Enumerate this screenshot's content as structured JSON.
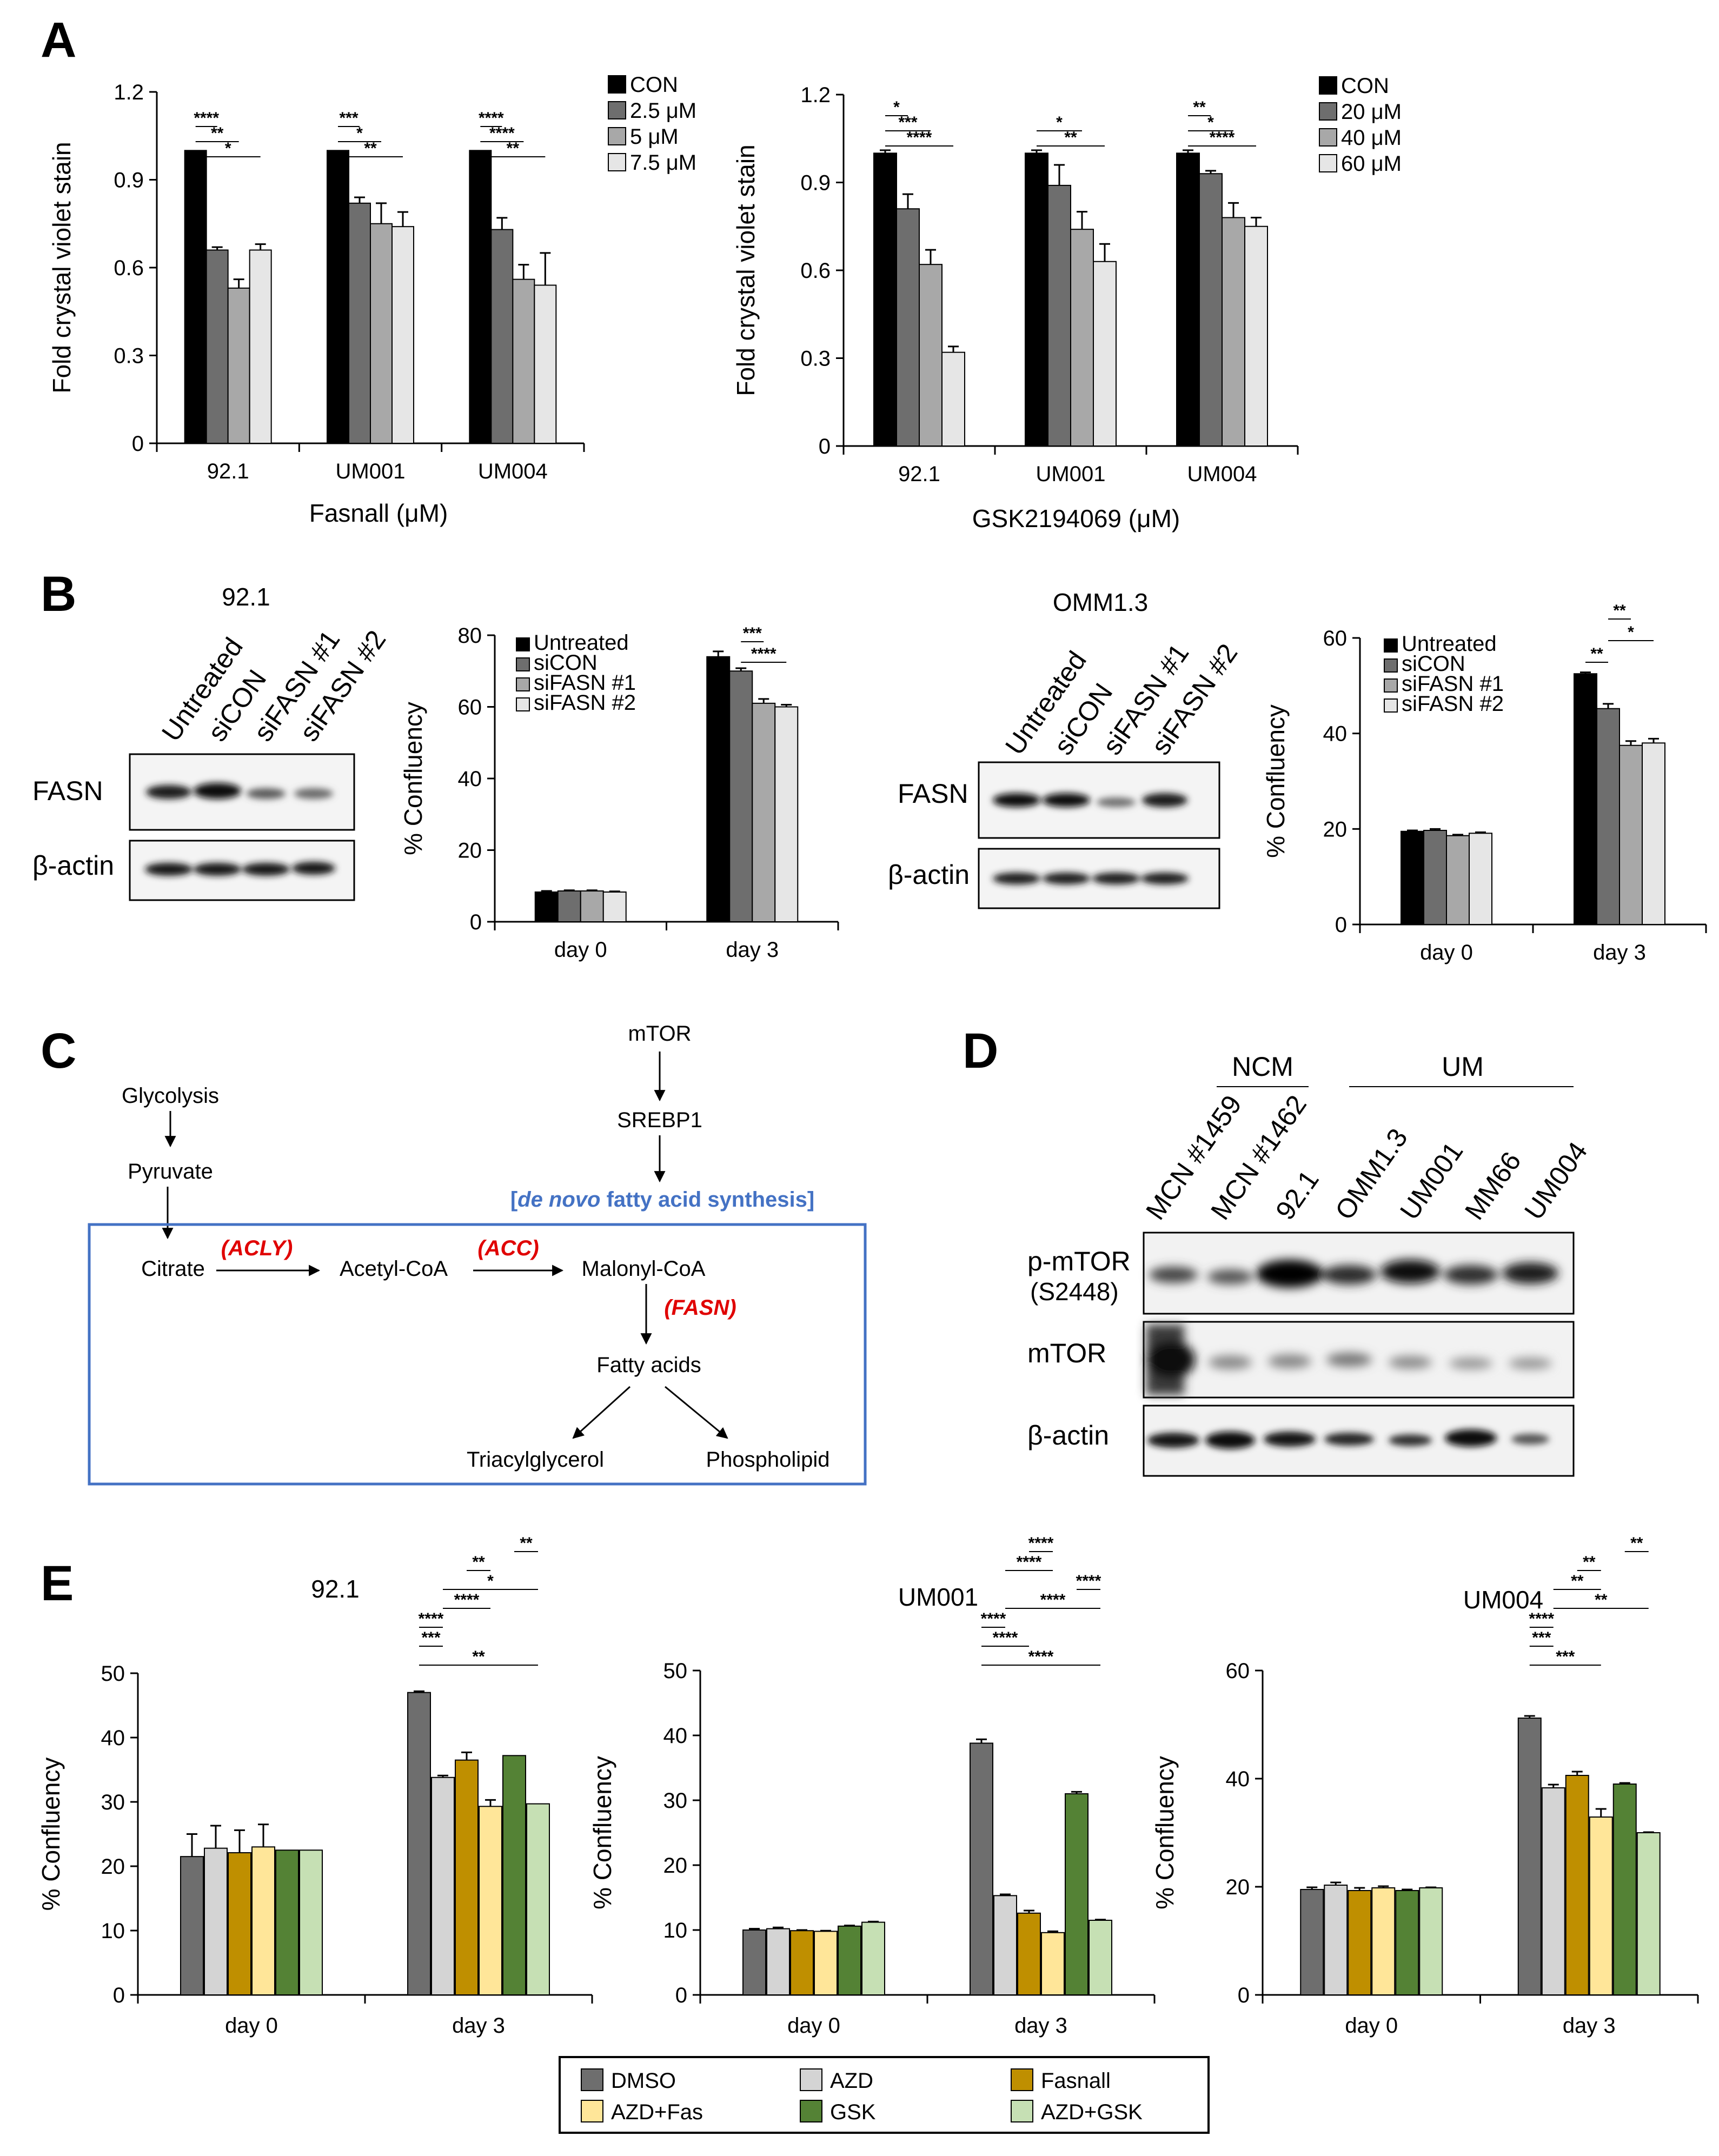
{
  "panel_labels": {
    "A": "A",
    "B": "B",
    "C": "C",
    "D": "D",
    "E": "E"
  },
  "colors": {
    "a_con": "#000000",
    "a_l1": "#6e6e6e",
    "a_l2": "#a8a8a8",
    "a_l3": "#e6e6e6",
    "dmso": "#6e6e6e",
    "azd": "#d4d4d4",
    "fasnall": "#bf8f00",
    "azdfas": "#ffe699",
    "gsk": "#548235",
    "azdgsk": "#c6e0b4",
    "pathway_box": "#4472c4",
    "enzyme_red": "#e00000",
    "title_blue": "#4472c4"
  },
  "chart_data": [
    {
      "id": "A1",
      "type": "bar",
      "ylabel": "Fold crystal violet stain",
      "xlabel": "Fasnall (μM)",
      "yticks": [
        "0",
        "0.3",
        "0.6",
        "0.9",
        "1.2"
      ],
      "ylim": [
        0,
        1.2
      ],
      "categories": [
        "92.1",
        "UM001",
        "UM004"
      ],
      "series": [
        {
          "name": "CON",
          "values": [
            1.0,
            1.0,
            1.0
          ],
          "errors": [
            0,
            0,
            0
          ]
        },
        {
          "name": "2.5 μM",
          "values": [
            0.66,
            0.82,
            0.73
          ],
          "errors": [
            0.01,
            0.02,
            0.04
          ]
        },
        {
          "name": "5 μM",
          "values": [
            0.53,
            0.75,
            0.56
          ],
          "errors": [
            0.03,
            0.07,
            0.05
          ]
        },
        {
          "name": "7.5 μM",
          "values": [
            0.66,
            0.74,
            0.54
          ],
          "errors": [
            0.02,
            0.05,
            0.11
          ]
        }
      ],
      "significance": [
        {
          "cat": 0,
          "from": 0,
          "to": 3,
          "label": "*"
        },
        {
          "cat": 0,
          "from": 0,
          "to": 2,
          "label": "**"
        },
        {
          "cat": 0,
          "from": 0,
          "to": 1,
          "label": "****"
        },
        {
          "cat": 1,
          "from": 0,
          "to": 3,
          "label": "**"
        },
        {
          "cat": 1,
          "from": 0,
          "to": 2,
          "label": "*"
        },
        {
          "cat": 1,
          "from": 0,
          "to": 1,
          "label": "***"
        },
        {
          "cat": 2,
          "from": 0,
          "to": 3,
          "label": "**"
        },
        {
          "cat": 2,
          "from": 0,
          "to": 2,
          "label": "****"
        },
        {
          "cat": 2,
          "from": 0,
          "to": 1,
          "label": "****"
        }
      ]
    },
    {
      "id": "A2",
      "type": "bar",
      "ylabel": "Fold crystal violet stain",
      "xlabel": "GSK2194069 (μM)",
      "yticks": [
        "0",
        "0.3",
        "0.6",
        "0.9",
        "1.2"
      ],
      "ylim": [
        0,
        1.2
      ],
      "categories": [
        "92.1",
        "UM001",
        "UM004"
      ],
      "series": [
        {
          "name": "CON",
          "values": [
            1.0,
            1.0,
            1.0
          ],
          "errors": [
            0.01,
            0.01,
            0.01
          ]
        },
        {
          "name": "20 μM",
          "values": [
            0.81,
            0.89,
            0.93
          ],
          "errors": [
            0.05,
            0.07,
            0.01
          ]
        },
        {
          "name": "40 μM",
          "values": [
            0.62,
            0.74,
            0.78
          ],
          "errors": [
            0.05,
            0.06,
            0.05
          ]
        },
        {
          "name": "60 μM",
          "values": [
            0.32,
            0.63,
            0.75
          ],
          "errors": [
            0.02,
            0.06,
            0.03
          ]
        }
      ],
      "significance": [
        {
          "cat": 0,
          "from": 0,
          "to": 3,
          "label": "****"
        },
        {
          "cat": 0,
          "from": 0,
          "to": 2,
          "label": "***"
        },
        {
          "cat": 0,
          "from": 0,
          "to": 1,
          "label": "*"
        },
        {
          "cat": 1,
          "from": 0,
          "to": 3,
          "label": "**"
        },
        {
          "cat": 1,
          "from": 0,
          "to": 2,
          "label": "*"
        },
        {
          "cat": 2,
          "from": 0,
          "to": 3,
          "label": "****"
        },
        {
          "cat": 2,
          "from": 0,
          "to": 2,
          "label": "*"
        },
        {
          "cat": 2,
          "from": 0,
          "to": 1,
          "label": "**"
        }
      ]
    },
    {
      "id": "B1",
      "type": "bar",
      "ylabel": "% Confluency",
      "xlabel": "",
      "yticks": [
        "0",
        "20",
        "40",
        "60",
        "80"
      ],
      "ylim": [
        0,
        80
      ],
      "categories": [
        "day 0",
        "day 3"
      ],
      "series": [
        {
          "name": "Untreated",
          "values": [
            8.3,
            74
          ],
          "errors": [
            0.3,
            1.5
          ]
        },
        {
          "name": "siCON",
          "values": [
            8.6,
            70
          ],
          "errors": [
            0.2,
            0.8
          ]
        },
        {
          "name": "siFASN #1",
          "values": [
            8.6,
            61
          ],
          "errors": [
            0.2,
            1.2
          ]
        },
        {
          "name": "siFASN #2",
          "values": [
            8.3,
            60
          ],
          "errors": [
            0.2,
            0.6
          ]
        }
      ],
      "significance": [
        {
          "cat": 1,
          "from": 1,
          "to": 3,
          "label": "****"
        },
        {
          "cat": 1,
          "from": 1,
          "to": 2,
          "label": "***"
        }
      ]
    },
    {
      "id": "B2",
      "type": "bar",
      "ylabel": "% Confluency",
      "xlabel": "",
      "yticks": [
        "0",
        "20",
        "40",
        "60"
      ],
      "ylim": [
        0,
        60
      ],
      "categories": [
        "day 0",
        "day 3"
      ],
      "series": [
        {
          "name": "Untreated",
          "values": [
            19.5,
            52.5
          ],
          "errors": [
            0.2,
            0.3
          ]
        },
        {
          "name": "siCON",
          "values": [
            19.7,
            45.2
          ],
          "errors": [
            0.3,
            1.0
          ]
        },
        {
          "name": "siFASN #1",
          "values": [
            18.6,
            37.5
          ],
          "errors": [
            0.2,
            0.9
          ]
        },
        {
          "name": "siFASN #2",
          "values": [
            19.1,
            38.0
          ],
          "errors": [
            0.2,
            0.9
          ]
        }
      ],
      "significance": [
        {
          "cat": 1,
          "from": 0,
          "to": 1,
          "label": "**"
        },
        {
          "cat": 1,
          "from": 1,
          "to": 3,
          "label": "*"
        },
        {
          "cat": 1,
          "from": 1,
          "to": 2,
          "label": "**"
        }
      ]
    },
    {
      "id": "E1",
      "type": "bar",
      "title": "92.1",
      "ylabel": "% Confluency",
      "xlabel": "",
      "yticks": [
        "0",
        "10",
        "20",
        "30",
        "40",
        "50"
      ],
      "ylim": [
        0,
        50
      ],
      "categories": [
        "day 0",
        "day 3"
      ],
      "series": [
        {
          "name": "DMSO",
          "values": [
            21.5,
            47.0
          ],
          "errors": [
            3.5,
            0.2
          ]
        },
        {
          "name": "AZD",
          "values": [
            22.8,
            33.8
          ],
          "errors": [
            3.5,
            0.3
          ]
        },
        {
          "name": "Fasnall",
          "values": [
            22.1,
            36.5
          ],
          "errors": [
            3.5,
            1.2
          ]
        },
        {
          "name": "AZD+Fas",
          "values": [
            23.0,
            29.3
          ],
          "errors": [
            3.5,
            1.0
          ]
        },
        {
          "name": "GSK",
          "values": [
            22.5,
            37.2
          ],
          "errors": [
            0,
            0
          ]
        },
        {
          "name": "AZD+GSK",
          "values": [
            22.5,
            29.7
          ],
          "errors": [
            0,
            0
          ]
        }
      ],
      "significance": [
        {
          "cat": 1,
          "from": 0,
          "to": 5,
          "label": "**"
        },
        {
          "cat": 1,
          "from": 0,
          "to": 1,
          "label": "***"
        },
        {
          "cat": 1,
          "from": 0,
          "to": 1,
          "label": "****"
        },
        {
          "cat": 1,
          "from": 1,
          "to": 3,
          "label": "****"
        },
        {
          "cat": 1,
          "from": 1,
          "to": 5,
          "label": "*"
        },
        {
          "cat": 1,
          "from": 2,
          "to": 3,
          "label": "**"
        },
        {
          "cat": 1,
          "from": 4,
          "to": 5,
          "label": "**"
        }
      ]
    },
    {
      "id": "E2",
      "type": "bar",
      "title": "UM001",
      "ylabel": "% Confluency",
      "xlabel": "",
      "yticks": [
        "0",
        "10",
        "20",
        "30",
        "40",
        "50"
      ],
      "ylim": [
        0,
        50
      ],
      "categories": [
        "day 0",
        "day 3"
      ],
      "series": [
        {
          "name": "DMSO",
          "values": [
            10.0,
            38.8
          ],
          "errors": [
            0.2,
            0.6
          ]
        },
        {
          "name": "AZD",
          "values": [
            10.2,
            15.3
          ],
          "errors": [
            0.2,
            0.2
          ]
        },
        {
          "name": "Fasnall",
          "values": [
            9.9,
            12.6
          ],
          "errors": [
            0.1,
            0.4
          ]
        },
        {
          "name": "AZD+Fas",
          "values": [
            9.8,
            9.6
          ],
          "errors": [
            0.1,
            0.2
          ]
        },
        {
          "name": "GSK",
          "values": [
            10.6,
            31.0
          ],
          "errors": [
            0.1,
            0.3
          ]
        },
        {
          "name": "AZD+GSK",
          "values": [
            11.2,
            11.5
          ],
          "errors": [
            0.1,
            0.1
          ]
        }
      ],
      "significance": [
        {
          "cat": 1,
          "from": 0,
          "to": 5,
          "label": "****"
        },
        {
          "cat": 1,
          "from": 0,
          "to": 2,
          "label": "****"
        },
        {
          "cat": 1,
          "from": 0,
          "to": 1,
          "label": "****"
        },
        {
          "cat": 1,
          "from": 1,
          "to": 5,
          "label": "****"
        },
        {
          "cat": 1,
          "from": 4,
          "to": 5,
          "label": "****"
        },
        {
          "cat": 1,
          "from": 1,
          "to": 3,
          "label": "****"
        },
        {
          "cat": 1,
          "from": 2,
          "to": 3,
          "label": "****"
        }
      ]
    },
    {
      "id": "E3",
      "type": "bar",
      "title": "UM004",
      "ylabel": "% Confluency",
      "xlabel": "",
      "yticks": [
        "0",
        "20",
        "40",
        "60"
      ],
      "ylim": [
        0,
        60
      ],
      "categories": [
        "day 0",
        "day 3"
      ],
      "series": [
        {
          "name": "DMSO",
          "values": [
            19.5,
            51.2
          ],
          "errors": [
            0.4,
            0.4
          ]
        },
        {
          "name": "AZD",
          "values": [
            20.3,
            38.3
          ],
          "errors": [
            0.5,
            0.6
          ]
        },
        {
          "name": "Fasnall",
          "values": [
            19.3,
            40.6
          ],
          "errors": [
            0.5,
            0.7
          ]
        },
        {
          "name": "AZD+Fas",
          "values": [
            19.8,
            32.9
          ],
          "errors": [
            0.3,
            1.5
          ]
        },
        {
          "name": "GSK",
          "values": [
            19.3,
            39.0
          ],
          "errors": [
            0.2,
            0.2
          ]
        },
        {
          "name": "AZD+GSK",
          "values": [
            19.8,
            30.0
          ],
          "errors": [
            0.1,
            0.1
          ]
        }
      ],
      "significance": [
        {
          "cat": 1,
          "from": 0,
          "to": 3,
          "label": "***"
        },
        {
          "cat": 1,
          "from": 0,
          "to": 1,
          "label": "***"
        },
        {
          "cat": 1,
          "from": 0,
          "to": 1,
          "label": "****"
        },
        {
          "cat": 1,
          "from": 1,
          "to": 5,
          "label": "**"
        },
        {
          "cat": 1,
          "from": 1,
          "to": 3,
          "label": "**"
        },
        {
          "cat": 1,
          "from": 2,
          "to": 3,
          "label": "**"
        },
        {
          "cat": 1,
          "from": 4,
          "to": 5,
          "label": "**"
        }
      ]
    }
  ],
  "legend_E": [
    "DMSO",
    "AZD",
    "Fasnall",
    "AZD+Fas",
    "GSK",
    "AZD+GSK"
  ],
  "blot_B1": {
    "title": "92.1",
    "lanes": [
      "Untreated",
      "siCON",
      "siFASN #1",
      "siFASN #2"
    ],
    "rows": [
      "FASN",
      "β-actin"
    ]
  },
  "blot_B2": {
    "title": "OMM1.3",
    "lanes": [
      "Untreated",
      "siCON",
      "siFASN #1",
      "siFASN #2"
    ],
    "rows": [
      "FASN",
      "β-actin"
    ]
  },
  "blot_D": {
    "group_ncm": "NCM",
    "group_um": "UM",
    "lanes": [
      "MCN #1459",
      "MCN #1462",
      "92.1",
      "OMM1.3",
      "UM001",
      "MM66",
      "UM004"
    ],
    "row_pmtor": "p-mTOR",
    "row_pmtor_site": "(S2448)",
    "row_mtor": "mTOR",
    "row_actin": "β-actin"
  },
  "pathway": {
    "glycolysis": "Glycolysis",
    "pyruvate": "Pyruvate",
    "mtor": "mTOR",
    "srebp1": "SREBP1",
    "title_bracket_open": "[",
    "title_italic": "de novo",
    "title_rest": " fatty acid synthesis]",
    "citrate": "Citrate",
    "acetyl_coa": "Acetyl-CoA",
    "malonyl_coa": "Malonyl-CoA",
    "fatty_acids": "Fatty acids",
    "triacylglycerol": "Triacylglycerol",
    "phospholipid": "Phospholipid",
    "acly": "(ACLY)",
    "acc": "(ACC)",
    "fasn": "(FASN)"
  }
}
